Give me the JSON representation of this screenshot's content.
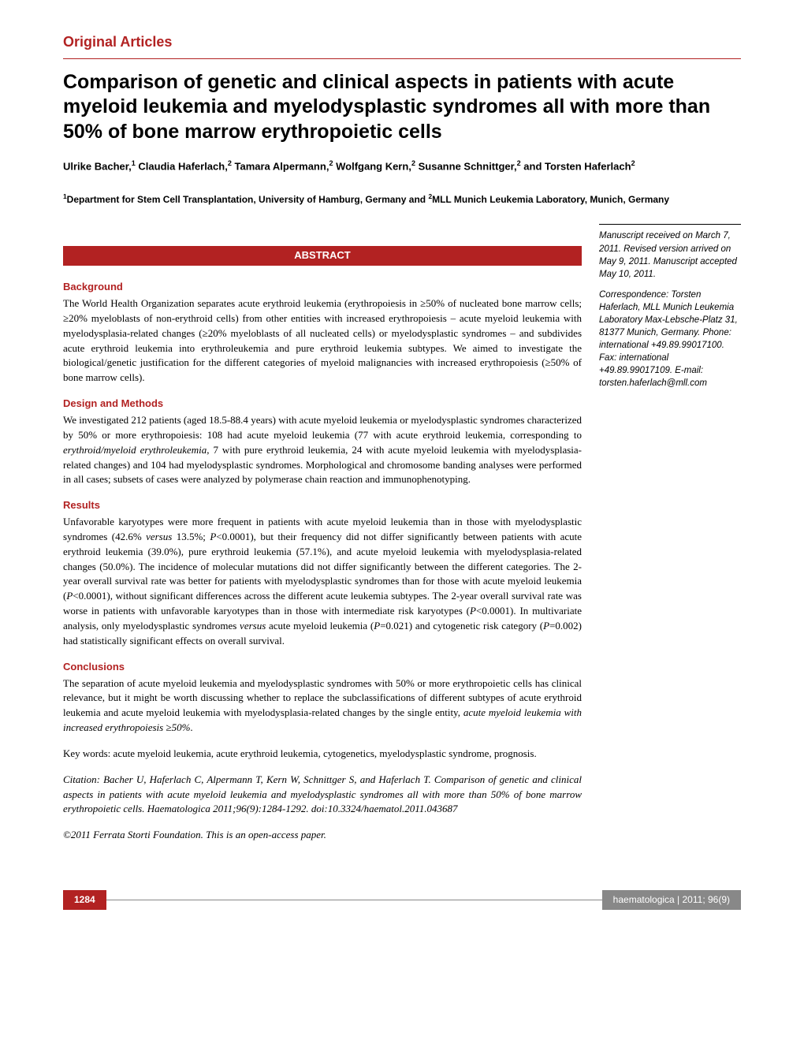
{
  "section_header": "Original Articles",
  "title": "Comparison of genetic and clinical aspects in patients with acute myeloid leukemia and myelodysplastic syndromes all with more than 50% of bone marrow erythropoietic cells",
  "authors_html": "Ulrike Bacher,<sup>1</sup> Claudia Haferlach,<sup>2</sup> Tamara Alpermann,<sup>2</sup> Wolfgang Kern,<sup>2</sup> Susanne Schnittger,<sup>2</sup> and Torsten Haferlach<sup>2</sup>",
  "affiliations_html": "<sup>1</sup>Department for Stem Cell Transplantation, University of Hamburg, Germany and <sup>2</sup>MLL Munich Leukemia Laboratory, Munich, Germany",
  "abstract_label": "ABSTRACT",
  "sidebar": {
    "received": "Manuscript received on March 7, 2011. Revised version arrived on May 9, 2011. Manuscript accepted May 10, 2011.",
    "correspondence": "Correspondence: Torsten Haferlach, MLL Munich Leukemia Laboratory Max-Lebsche-Platz 31, 81377 Munich, Germany. Phone: international +49.89.99017100. Fax: international +49.89.99017109. E-mail: torsten.haferlach@mll.com"
  },
  "abstract": {
    "background": {
      "head": "Background",
      "text": "The World Health Organization separates acute erythroid leukemia (erythropoiesis in ≥50% of nucleated bone marrow cells; ≥20% myeloblasts of non-erythroid cells) from other entities with increased erythropoiesis – acute myeloid leukemia with myelodysplasia-related changes (≥20% myeloblasts of all nucleated cells) or myelodysplastic syndromes – and subdivides acute erythroid leukemia into erythroleukemia and pure erythroid leukemia subtypes. We aimed to investigate the biological/genetic justification for the different categories of myeloid malignancies with increased erythropoiesis (≥50% of bone marrow cells)."
    },
    "methods": {
      "head": "Design and Methods",
      "text_html": "We investigated 212 patients (aged 18.5-88.4 years) with acute myeloid leukemia or myelodysplastic syndromes characterized by 50% or more erythropoiesis: 108 had acute myeloid leukemia (77 with acute erythroid leukemia, corresponding to <span class=\"italic\">erythroid/myeloid erythroleukemia</span>, 7 with pure erythroid leukemia, 24 with acute myeloid leukemia with myelodysplasia-related changes) and 104 had myelodysplastic syndromes. Morphological and chromosome banding analyses were performed in all cases; subsets of cases were analyzed by polymerase chain reaction and immunophenotyping."
    },
    "results": {
      "head": "Results",
      "text_html": "Unfavorable karyotypes were more frequent in patients with acute myeloid leukemia than in those with myelodysplastic syndromes (42.6% <span class=\"italic\">versus</span> 13.5%; <span class=\"italic\">P</span>&lt;0.0001), but their frequency did not differ significantly between patients with acute erythroid leukemia (39.0%), pure erythroid leukemia (57.1%), and acute myeloid leukemia with myelodysplasia-related changes (50.0%). The incidence of molecular mutations did not differ significantly between the different categories. The 2-year overall survival rate was better for patients with myelodysplastic syndromes than for those with acute myeloid leukemia (<span class=\"italic\">P</span>&lt;0.0001), without significant differences across the different acute leukemia subtypes. The 2-year overall survival rate was worse in patients with unfavorable karyotypes than in those with intermediate risk karyotypes (<span class=\"italic\">P</span>&lt;0.0001). In multivariate analysis, only myelodysplastic syndromes <span class=\"italic\">versus</span> acute myeloid leukemia (<span class=\"italic\">P</span>=0.021) and cytogenetic risk category (<span class=\"italic\">P</span>=0.002) had statistically significant effects on overall survival."
    },
    "conclusions": {
      "head": "Conclusions",
      "text_html": "The separation of acute myeloid leukemia and myelodysplastic syndromes with 50% or more erythropoietic cells has clinical relevance, but it might be worth discussing whether to replace the subclassifications of different subtypes of acute erythroid leukemia and acute myeloid leukemia with myelodysplasia-related changes by the single entity, <span class=\"italic\">acute myeloid leukemia with increased erythropoiesis ≥50%</span>."
    }
  },
  "keywords": "Key words: acute myeloid leukemia, acute erythroid leukemia, cytogenetics, myelodysplastic syndrome, prognosis.",
  "citation": "Citation: Bacher U, Haferlach C, Alpermann T, Kern W, Schnittger S, and Haferlach T. Comparison of genetic and clinical aspects in patients with acute myeloid leukemia and myelodysplastic syndromes all with more than 50% of bone marrow erythropoietic cells. Haematologica 2011;96(9):1284-1292. doi:10.3324/haematol.2011.043687",
  "copyright": "©2011 Ferrata Storti Foundation. This is an open-access paper.",
  "footer": {
    "page": "1284",
    "journal": "haematologica | 2011; 96(9)"
  },
  "colors": {
    "brand_red": "#b22222",
    "gray": "#888888",
    "text": "#000000",
    "bg": "#ffffff"
  },
  "fonts": {
    "serif": "Georgia, 'Times New Roman', serif",
    "sans": "Arial, Helvetica, sans-serif"
  }
}
